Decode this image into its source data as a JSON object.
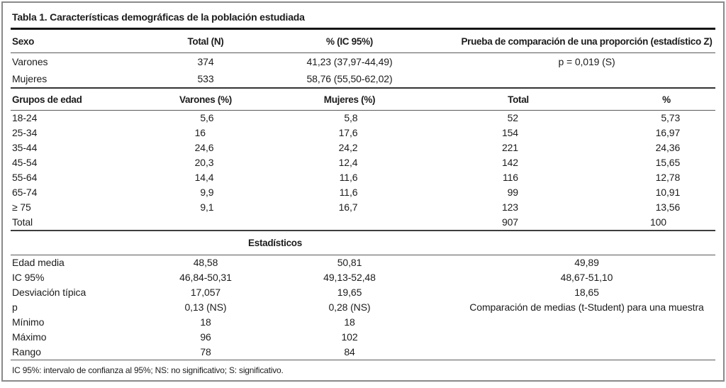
{
  "title": "Tabla 1. Características demográficas de la población estudiada",
  "sexo_section": {
    "headers": {
      "sexo": "Sexo",
      "total_n": "Total (N)",
      "pct_ic": "% (IC 95%)",
      "prueba": "Prueba de comparación de una proporción (estadístico Z)"
    },
    "rows": [
      {
        "label": "Varones",
        "total_n": "374",
        "pct_ic": "41,23 (37,97-44,49)",
        "prueba": "p = 0,019 (S)"
      },
      {
        "label": "Mujeres",
        "total_n": "533",
        "pct_ic": "58,76 (55,50-62,02)",
        "prueba": ""
      }
    ]
  },
  "edad_section": {
    "headers": {
      "grupos": "Grupos de edad",
      "varones": "Varones (%)",
      "mujeres": "Mujeres (%)",
      "total": "Total",
      "pct": "%"
    },
    "rows": [
      {
        "label": "18-24",
        "varones": "5,6",
        "mujeres": "5,8",
        "total": "52",
        "pct": "5,73"
      },
      {
        "label": "25-34",
        "varones": "16",
        "mujeres": "17,6",
        "total": "154",
        "pct": "16,97"
      },
      {
        "label": "35-44",
        "varones": "24,6",
        "mujeres": "24,2",
        "total": "221",
        "pct": "24,36"
      },
      {
        "label": "45-54",
        "varones": "20,3",
        "mujeres": "12,4",
        "total": "142",
        "pct": "15,65"
      },
      {
        "label": "55-64",
        "varones": "14,4",
        "mujeres": "11,6",
        "total": "116",
        "pct": "12,78"
      },
      {
        "label": "65-74",
        "varones": "9,9",
        "mujeres": "11,6",
        "total": "99",
        "pct": "10,91"
      },
      {
        "label": "≥ 75",
        "varones": "9,1",
        "mujeres": "16,7",
        "total": "123",
        "pct": "13,56"
      },
      {
        "label": "Total",
        "varones": "",
        "mujeres": "",
        "total": "907",
        "pct": "100"
      }
    ]
  },
  "estadisticos_section": {
    "header": "Estadísticos",
    "rows": [
      {
        "label": "Edad media",
        "varones": "48,58",
        "mujeres": "50,81",
        "combined": "49,89"
      },
      {
        "label": "IC 95%",
        "varones": "46,84-50,31",
        "mujeres": "49,13-52,48",
        "combined": "48,67-51,10"
      },
      {
        "label": "Desviación típica",
        "varones": "17,057",
        "mujeres": "19,65",
        "combined": "18,65"
      },
      {
        "label": "p",
        "varones": "0,13 (NS)",
        "mujeres": "0,28 (NS)",
        "combined": "Comparación de medias (t-Student) para una muestra"
      },
      {
        "label": "Mínimo",
        "varones": "18",
        "mujeres": "18",
        "combined": ""
      },
      {
        "label": "Máximo",
        "varones": "96",
        "mujeres": "102",
        "combined": ""
      },
      {
        "label": "Rango",
        "varones": "78",
        "mujeres": "84",
        "combined": ""
      }
    ]
  },
  "footnote": "IC 95%: intervalo de confianza al 95%; NS: no significativo; S: significativo."
}
